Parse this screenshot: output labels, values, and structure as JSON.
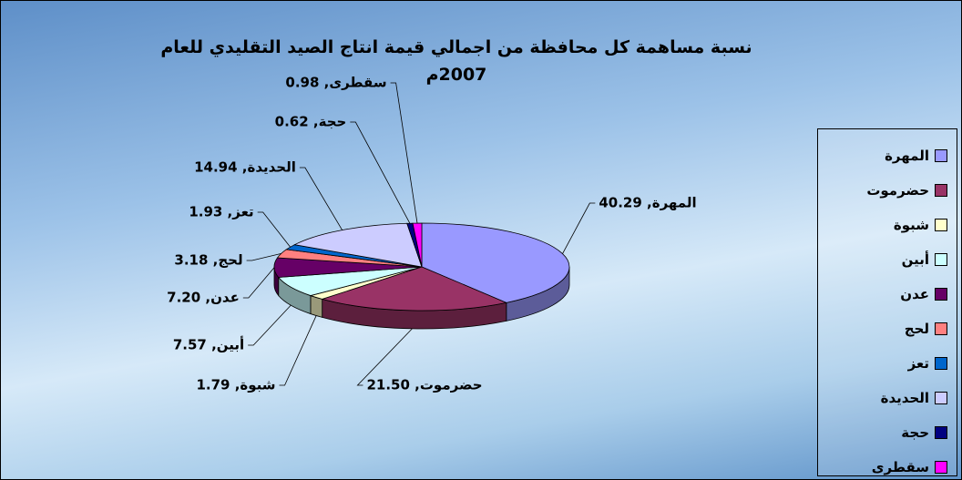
{
  "chart_data": {
    "type": "pie",
    "title": "نسبة مساهمة كل محافظة من اجمالي قيمة انتاج الصيد التقليدي للعام 2007م",
    "categories": [
      "المهرة",
      "حضرموت",
      "شبوة",
      "أبين",
      "عدن",
      "لحج",
      "تعز",
      "الحديدة",
      "حجة",
      "سقطرى"
    ],
    "values": [
      40.29,
      21.5,
      1.79,
      7.57,
      7.2,
      3.18,
      1.93,
      14.94,
      0.62,
      0.98
    ],
    "value_labels": [
      "المهرة, 40.29",
      "حضرموت, 21.50",
      "شبوة, 1.79",
      "أبين, 7.57",
      "عدن, 7.20",
      "لحج, 3.18",
      "تعز, 1.93",
      "الحديدة, 14.94",
      "حجة, 0.62",
      "سقطرى, 0.98"
    ],
    "colors": [
      "#9999ff",
      "#993366",
      "#ffffcc",
      "#ccffff",
      "#660066",
      "#ff8080",
      "#0066cc",
      "#ccccff",
      "#000080",
      "#ff00ff"
    ],
    "legend": "right"
  }
}
